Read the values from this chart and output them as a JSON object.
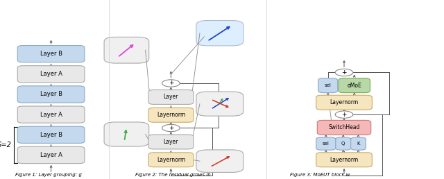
{
  "fig_width": 6.4,
  "fig_height": 2.58,
  "dpi": 100,
  "background": "#ffffff",
  "caption1": "Figure 1: Layer grouping: g",
  "caption2": "Figure 2: The residual grows in",
  "caption3": "Figure 3: MoEUT block w",
  "colors": {
    "layerA_fc": "#e8e8e8",
    "layerA_ec": "#aaaaaa",
    "layerB_fc": "#c5d9ee",
    "layerB_ec": "#8aaac8",
    "layernorm_fc": "#f5e6c0",
    "layernorm_ec": "#ccaa66",
    "switchhead_fc": "#f5b8b8",
    "switchhead_ec": "#cc7777",
    "smoe_fc": "#b8d8a8",
    "smoe_ec": "#77aa55",
    "sel_fc": "#c5d9ee",
    "sel_ec": "#8aaac8",
    "arrow": "#555555",
    "divider": "#cccccc",
    "plus_ec": "#888888"
  }
}
